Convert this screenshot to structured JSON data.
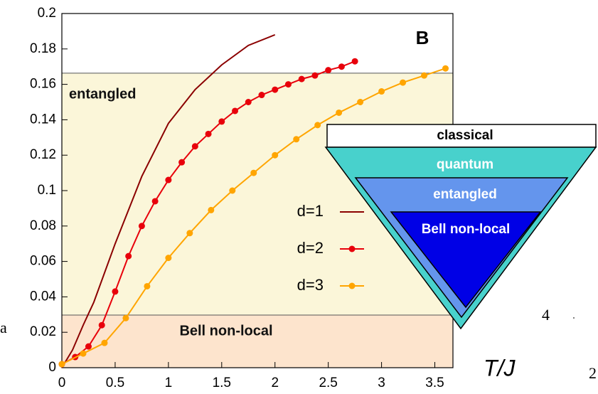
{
  "chart_data": {
    "type": "line",
    "panel_label": "B",
    "xlim": [
      0,
      3.67
    ],
    "ylim": [
      0,
      0.2
    ],
    "xticks": [
      0,
      0.5,
      1,
      1.5,
      2,
      2.5,
      3,
      3.5
    ],
    "yticks": [
      0,
      0.02,
      0.04,
      0.06,
      0.08,
      0.1,
      0.12,
      0.14,
      0.16,
      0.18,
      0.2
    ],
    "regions": [
      {
        "name": "entangled",
        "range": [
          0.0297,
          0.1663
        ],
        "color": "#fbf6d9"
      },
      {
        "name": "Bell non-local",
        "range": [
          0,
          0.0297
        ],
        "color": "#fde4cd"
      }
    ],
    "series": [
      {
        "name": "d=1",
        "color": "#8b0000",
        "markers": false,
        "x": [
          0,
          0.1,
          0.2,
          0.3,
          0.5,
          0.75,
          1.0,
          1.25,
          1.5,
          1.75,
          2.0
        ],
        "values": [
          0.0,
          0.01,
          0.024,
          0.037,
          0.07,
          0.108,
          0.138,
          0.157,
          0.171,
          0.182,
          0.188
        ]
      },
      {
        "name": "d=2",
        "color": "#e8000b",
        "markers": true,
        "x": [
          0,
          0.125,
          0.25,
          0.375,
          0.5,
          0.625,
          0.75,
          0.875,
          1.0,
          1.125,
          1.25,
          1.375,
          1.5,
          1.625,
          1.75,
          1.875,
          2.0,
          2.125,
          2.25,
          2.375,
          2.5,
          2.625,
          2.75
        ],
        "values": [
          0.002,
          0.006,
          0.012,
          0.024,
          0.043,
          0.063,
          0.08,
          0.094,
          0.106,
          0.116,
          0.125,
          0.132,
          0.139,
          0.145,
          0.15,
          0.154,
          0.157,
          0.16,
          0.163,
          0.165,
          0.168,
          0.17,
          0.173
        ]
      },
      {
        "name": "d=3",
        "color": "#ffa500",
        "markers": true,
        "x": [
          0,
          0.2,
          0.4,
          0.6,
          0.8,
          1.0,
          1.2,
          1.4,
          1.6,
          1.8,
          2.0,
          2.2,
          2.4,
          2.6,
          2.8,
          3.0,
          3.2,
          3.4,
          3.6
        ],
        "values": [
          0.002,
          0.008,
          0.014,
          0.028,
          0.046,
          0.062,
          0.076,
          0.089,
          0.1,
          0.11,
          0.12,
          0.129,
          0.137,
          0.144,
          0.15,
          0.156,
          0.161,
          0.165,
          0.169
        ]
      }
    ],
    "inset": {
      "levels": [
        {
          "label": "classical",
          "color": "#ffffff",
          "text_color": "#000000"
        },
        {
          "label": "quantum",
          "color": "#48d1cc",
          "text_color": "#ffffff"
        },
        {
          "label": "entangled",
          "color": "#6495ed",
          "text_color": "#ffffff"
        },
        {
          "label": "Bell non-local",
          "color": "#0000e6",
          "text_color": "#ffffff"
        }
      ]
    }
  },
  "extra_text": [
    "a",
    "4",
    "T/J",
    "2"
  ]
}
